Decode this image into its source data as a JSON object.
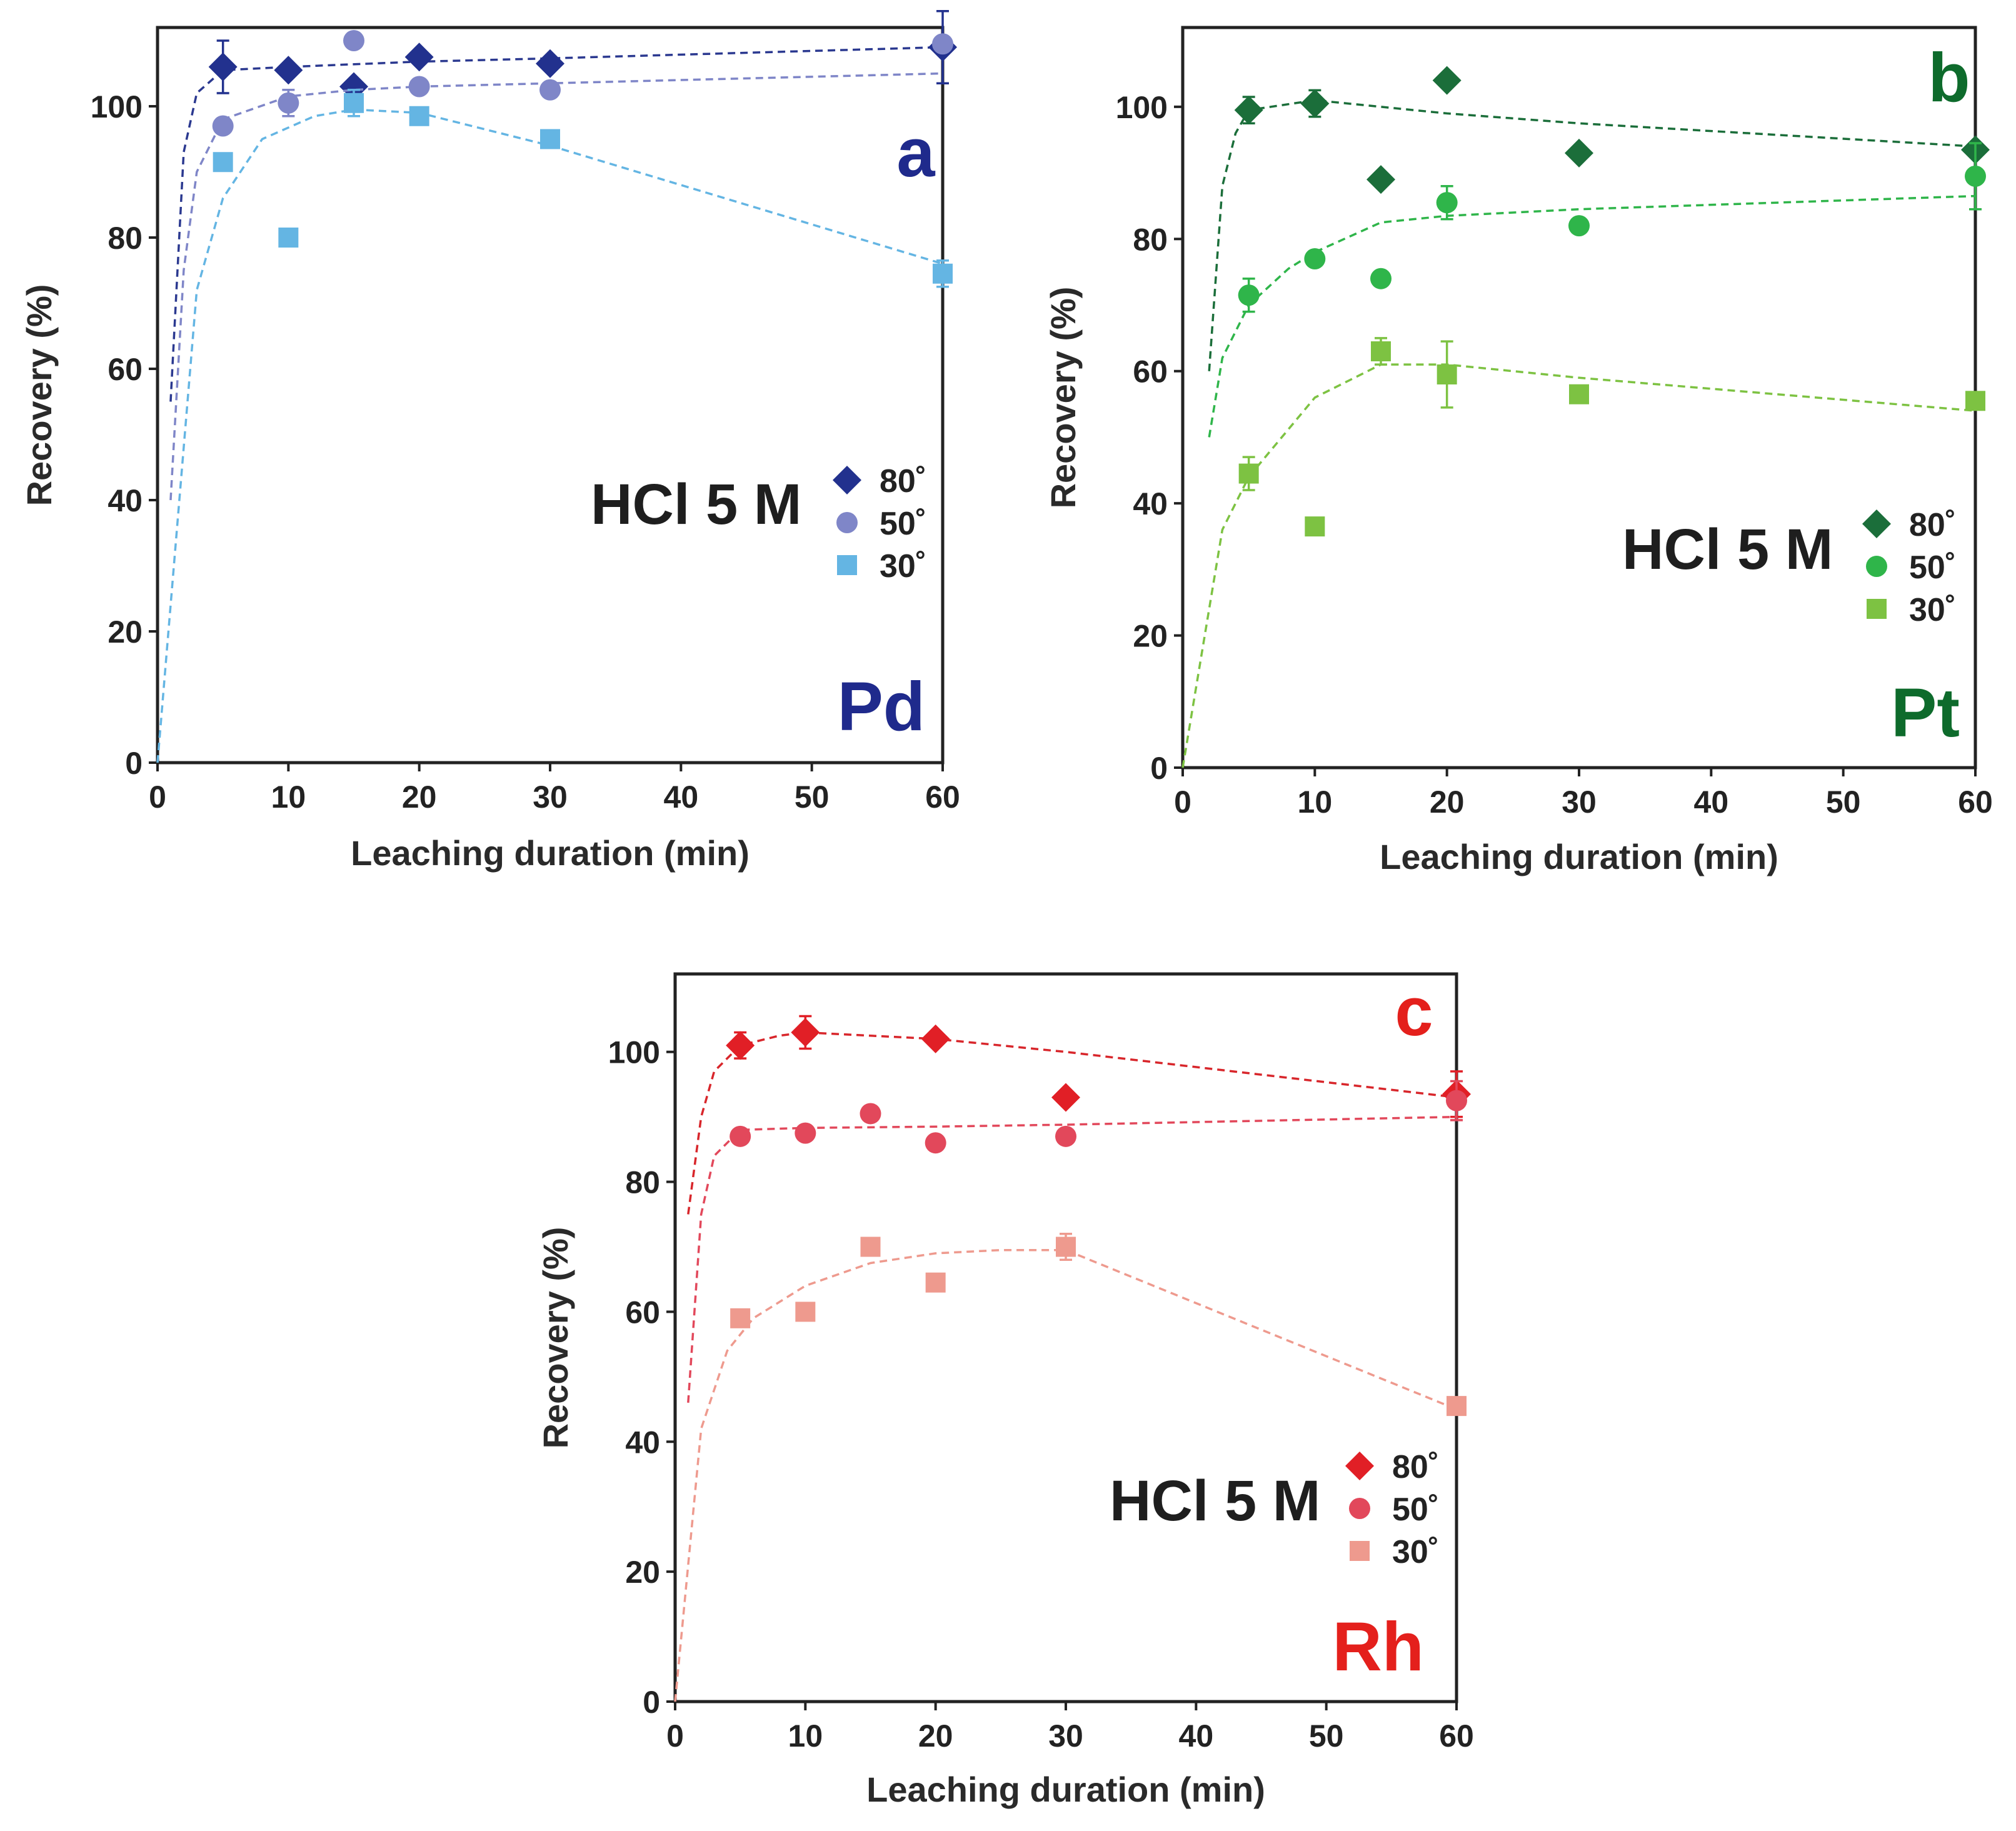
{
  "chart_data": [
    {
      "type": "scatter",
      "panel": "a",
      "element": "Pd",
      "annotation": "HCl 5 M",
      "xlabel": "Leaching duration (min)",
      "ylabel": "Recovery (%)",
      "xlim": [
        0,
        60
      ],
      "ylim": [
        0,
        112
      ],
      "xticks": [
        "0",
        "10",
        "20",
        "30",
        "40",
        "50",
        "60"
      ],
      "yticks": [
        "0",
        "20",
        "40",
        "60",
        "80",
        "100"
      ],
      "label_color": "#1f2a8c",
      "legend_position": "right",
      "series": [
        {
          "name": "80˚",
          "marker": "diamond",
          "color": "#22318e",
          "line_color": "#2b3990",
          "x": [
            5,
            10,
            15,
            20,
            30,
            60
          ],
          "y": [
            106,
            105.5,
            103,
            107.5,
            106.5,
            109
          ],
          "err": [
            4,
            0,
            0,
            0,
            0,
            5.5
          ],
          "fit_x": [
            1,
            2,
            3,
            5,
            10,
            20,
            30,
            60
          ],
          "fit_y": [
            55,
            93,
            102,
            105.5,
            106,
            106.8,
            107.3,
            109
          ]
        },
        {
          "name": "50˚",
          "marker": "circle",
          "color": "#7f86c8",
          "line_color": "#7f86c8",
          "x": [
            5,
            10,
            15,
            20,
            30,
            60
          ],
          "y": [
            97,
            100.5,
            110,
            103,
            102.5,
            109.5
          ],
          "err": [
            0,
            2,
            0,
            0,
            0,
            0
          ],
          "fit_x": [
            1,
            2,
            3,
            5,
            10,
            15,
            20,
            30,
            60
          ],
          "fit_y": [
            40,
            75,
            90,
            98,
            101.5,
            102.5,
            103,
            103.5,
            105
          ]
        },
        {
          "name": "30˚",
          "marker": "square",
          "color": "#64b5e3",
          "line_color": "#64b5e3",
          "x": [
            5,
            10,
            15,
            20,
            30,
            60
          ],
          "y": [
            91.5,
            80,
            100.5,
            98.5,
            95,
            74.5
          ],
          "err": [
            0,
            0,
            2,
            0,
            0,
            2
          ],
          "fit_x": [
            0,
            3,
            5,
            8,
            12,
            15,
            20,
            30,
            60
          ],
          "fit_y": [
            0,
            72,
            86,
            95,
            98.5,
            99.5,
            99,
            94,
            76
          ]
        }
      ]
    },
    {
      "type": "scatter",
      "panel": "b",
      "element": "Pt",
      "annotation": "HCl 5 M",
      "xlabel": "Leaching duration (min)",
      "ylabel": "Recovery (%)",
      "xlim": [
        0,
        60
      ],
      "ylim": [
        0,
        112
      ],
      "xticks": [
        "0",
        "10",
        "20",
        "30",
        "40",
        "50",
        "60"
      ],
      "yticks": [
        "0",
        "20",
        "40",
        "60",
        "80",
        "100"
      ],
      "label_color": "#0e6b2c",
      "legend_position": "right",
      "series": [
        {
          "name": "80˚",
          "marker": "diamond",
          "color": "#1b6e3a",
          "line_color": "#1b6e3a",
          "x": [
            5,
            10,
            15,
            20,
            30,
            60
          ],
          "y": [
            99.5,
            100.5,
            89,
            104,
            93,
            93.5
          ],
          "err": [
            2,
            2,
            0,
            0,
            0,
            0
          ],
          "fit_x": [
            2,
            3,
            4,
            5,
            10,
            20,
            30,
            60
          ],
          "fit_y": [
            60,
            88,
            96,
            99.5,
            101,
            99,
            97.5,
            94
          ]
        },
        {
          "name": "50˚",
          "marker": "circle",
          "color": "#2fb54a",
          "line_color": "#2fb54a",
          "x": [
            5,
            10,
            15,
            20,
            30,
            60
          ],
          "y": [
            71.5,
            77,
            74,
            85.5,
            82,
            89.5
          ],
          "err": [
            2.5,
            1,
            0,
            2.5,
            0,
            5
          ],
          "fit_x": [
            2,
            3,
            5,
            8,
            10,
            15,
            20,
            30,
            60
          ],
          "fit_y": [
            50,
            62,
            70,
            75.5,
            78,
            82.5,
            83.5,
            84.5,
            86.5
          ]
        },
        {
          "name": "30˚",
          "marker": "square",
          "color": "#7dc242",
          "line_color": "#7dc242",
          "x": [
            5,
            10,
            15,
            20,
            30,
            60
          ],
          "y": [
            44.5,
            36.5,
            63,
            59.5,
            56.5,
            55.5
          ],
          "err": [
            2.5,
            0,
            2,
            5,
            0,
            0
          ],
          "fit_x": [
            0,
            3,
            5,
            10,
            15,
            20,
            30,
            60
          ],
          "fit_y": [
            0,
            36,
            44,
            56,
            61,
            61,
            59,
            54
          ]
        }
      ]
    },
    {
      "type": "scatter",
      "panel": "c",
      "element": "Rh",
      "annotation": "HCl 5 M",
      "xlabel": "Leaching duration (min)",
      "ylabel": "Recovery (%)",
      "xlim": [
        0,
        60
      ],
      "ylim": [
        0,
        112
      ],
      "xticks": [
        "0",
        "10",
        "20",
        "30",
        "40",
        "50",
        "60"
      ],
      "yticks": [
        "0",
        "20",
        "40",
        "60",
        "80",
        "100"
      ],
      "label_color": "#e4201c",
      "legend_position": "right",
      "series": [
        {
          "name": "80˚",
          "marker": "diamond",
          "color": "#e11f26",
          "line_color": "#d8262b",
          "x": [
            5,
            10,
            20,
            30,
            60
          ],
          "y": [
            101,
            103,
            102,
            93,
            93.5
          ],
          "err": [
            2,
            2.5,
            0,
            0,
            3.5
          ],
          "fit_x": [
            1,
            2,
            3,
            5,
            8,
            10,
            20,
            30,
            60
          ],
          "fit_y": [
            75,
            90,
            97,
            101,
            102.5,
            103,
            102,
            100,
            93
          ]
        },
        {
          "name": "50˚",
          "marker": "circle",
          "color": "#e2485b",
          "line_color": "#e2485b",
          "x": [
            5,
            10,
            15,
            20,
            30,
            60
          ],
          "y": [
            87,
            87.5,
            90.5,
            86,
            87,
            92.5
          ],
          "err": [
            0,
            0,
            0,
            0,
            0,
            3
          ],
          "fit_x": [
            1,
            2,
            3,
            5,
            10,
            20,
            30,
            60
          ],
          "fit_y": [
            46,
            75,
            84,
            88,
            88.3,
            88.5,
            88.8,
            90
          ]
        },
        {
          "name": "30˚",
          "marker": "square",
          "color": "#ee9a8e",
          "line_color": "#ee9a8e",
          "x": [
            5,
            10,
            15,
            20,
            30,
            60
          ],
          "y": [
            59,
            60,
            70,
            64.5,
            70,
            45.5
          ],
          "err": [
            0,
            0,
            0,
            0,
            2,
            0
          ],
          "fit_x": [
            0,
            2,
            4,
            6,
            10,
            15,
            20,
            25,
            30,
            60
          ],
          "fit_y": [
            0,
            42,
            54,
            59,
            64,
            67.5,
            69,
            69.5,
            69.5,
            45
          ]
        }
      ]
    }
  ]
}
